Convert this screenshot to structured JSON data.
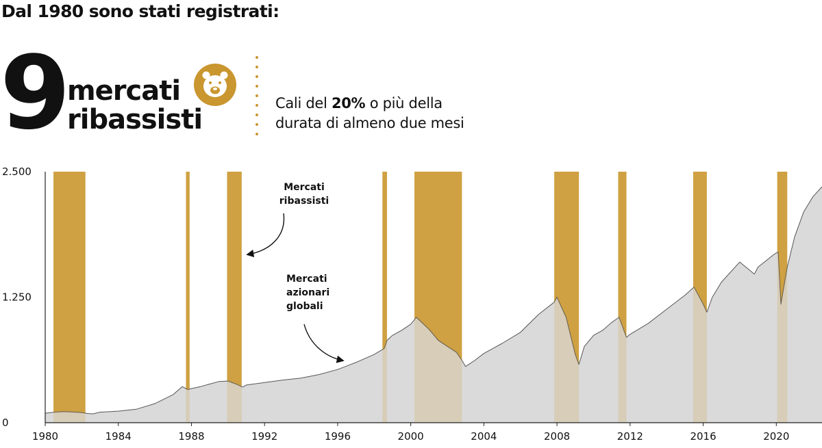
{
  "header": {
    "title": "Dal 1980 sono stati registrati:",
    "count": "9",
    "label_line1": "mercati",
    "label_line2": "ribassisti",
    "icon": "bear-icon",
    "desc_line1_pre": "Cali del ",
    "desc_line1_bold": "20%",
    "desc_line1_post": " o più della",
    "desc_line2": "durata di almeno due mesi"
  },
  "colors": {
    "bear_band": "#cfa142",
    "area_fill": "#dadada",
    "area_line": "#555555",
    "accent": "#c9962f"
  },
  "chart_data": {
    "type": "area",
    "xlim": [
      1980,
      2022.5
    ],
    "ylim": [
      0,
      2500
    ],
    "x_ticks": [
      "1980",
      "1984",
      "1988",
      "1992",
      "1996",
      "2000",
      "2004",
      "2008",
      "2012",
      "2016",
      "2020"
    ],
    "y_ticks": [
      "0",
      "1.250",
      "2.500"
    ],
    "bear_markets": [
      [
        1980.45,
        1982.2
      ],
      [
        1987.7,
        1987.9
      ],
      [
        1989.95,
        1990.75
      ],
      [
        1998.45,
        1998.7
      ],
      [
        2000.2,
        2002.8
      ],
      [
        2007.85,
        2009.2
      ],
      [
        2011.35,
        2011.8
      ],
      [
        2015.45,
        2016.2
      ],
      [
        2020.05,
        2020.6
      ]
    ],
    "series": [
      {
        "x": [
          1980,
          1980.5,
          1981,
          1981.5,
          1982,
          1982.3,
          1982.6,
          1983,
          1984,
          1985,
          1986,
          1987,
          1987.5,
          1987.8,
          1988,
          1988.5,
          1989,
          1989.5,
          1990,
          1990.5,
          1990.8,
          1991,
          1992,
          1993,
          1994,
          1995,
          1996,
          1997,
          1998,
          1998.55,
          1998.7,
          1999,
          1999.5,
          2000,
          2000.3,
          2001,
          2001.5,
          2002,
          2002.5,
          2002.8,
          2003,
          2003.5,
          2004,
          2005,
          2006,
          2007,
          2007.85,
          2008,
          2008.5,
          2009,
          2009.2,
          2009.5,
          2010,
          2010.5,
          2011,
          2011.4,
          2011.8,
          2012,
          2013,
          2014,
          2015,
          2015.5,
          2016,
          2016.2,
          2016.5,
          2017,
          2018,
          2018.8,
          2019,
          2019.9,
          2020.1,
          2020.25,
          2020.6,
          2021,
          2021.5,
          2022,
          2022.5
        ],
        "y": [
          95,
          105,
          110,
          106,
          100,
          92,
          88,
          105,
          115,
          135,
          190,
          280,
          360,
          330,
          340,
          360,
          385,
          410,
          415,
          380,
          355,
          375,
          400,
          425,
          445,
          480,
          530,
          600,
          680,
          740,
          820,
          870,
          920,
          980,
          1050,
          930,
          820,
          760,
          700,
          620,
          560,
          620,
          690,
          790,
          900,
          1080,
          1200,
          1250,
          1050,
          680,
          580,
          760,
          870,
          920,
          1000,
          1050,
          850,
          880,
          990,
          1130,
          1270,
          1350,
          1180,
          1100,
          1250,
          1400,
          1600,
          1480,
          1550,
          1680,
          1700,
          1180,
          1550,
          1850,
          2100,
          2250,
          2350
        ]
      }
    ],
    "annotations": [
      {
        "line1": "Mercati",
        "line2": "ribassisti",
        "line3": ""
      },
      {
        "line1": "Mercati",
        "line2": "azionari",
        "line3": "globali"
      }
    ]
  }
}
